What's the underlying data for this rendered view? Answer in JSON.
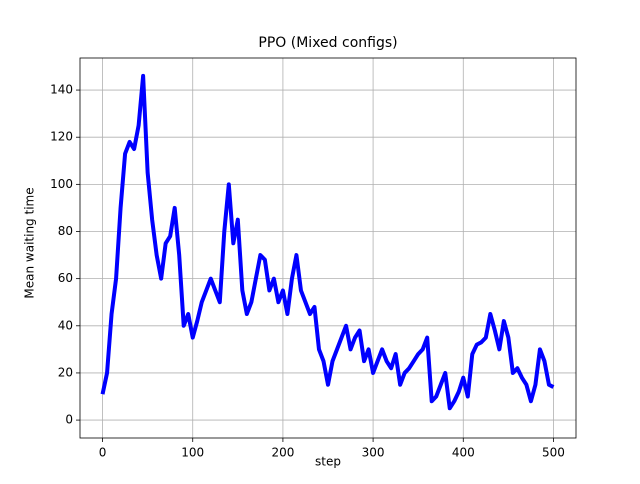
{
  "chart_data": {
    "type": "line",
    "title": "PPO (Mixed configs)",
    "xlabel": "step",
    "ylabel": "Mean waiting time",
    "x": [
      0,
      5,
      10,
      15,
      20,
      25,
      30,
      35,
      40,
      45,
      50,
      55,
      60,
      65,
      70,
      75,
      80,
      85,
      90,
      95,
      100,
      105,
      110,
      115,
      120,
      125,
      130,
      135,
      140,
      145,
      150,
      155,
      160,
      165,
      170,
      175,
      180,
      185,
      190,
      195,
      200,
      205,
      210,
      215,
      220,
      225,
      230,
      235,
      240,
      245,
      250,
      255,
      260,
      265,
      270,
      275,
      280,
      285,
      290,
      295,
      300,
      305,
      310,
      315,
      320,
      325,
      330,
      335,
      340,
      345,
      350,
      355,
      360,
      365,
      370,
      375,
      380,
      385,
      390,
      395,
      400,
      405,
      410,
      415,
      420,
      425,
      430,
      435,
      440,
      445,
      450,
      455,
      460,
      465,
      470,
      475,
      480,
      485,
      490,
      495,
      500
    ],
    "series": [
      {
        "name": "PPO",
        "color": "#0000ff",
        "values": [
          11,
          20,
          45,
          60,
          90,
          113,
          118,
          115,
          125,
          146,
          105,
          85,
          70,
          60,
          75,
          78,
          90,
          70,
          40,
          45,
          35,
          42,
          50,
          55,
          60,
          55,
          50,
          80,
          100,
          75,
          85,
          55,
          45,
          50,
          60,
          70,
          68,
          55,
          60,
          50,
          55,
          45,
          60,
          70,
          55,
          50,
          45,
          48,
          30,
          25,
          15,
          25,
          30,
          35,
          40,
          30,
          35,
          38,
          25,
          30,
          20,
          25,
          30,
          25,
          22,
          28,
          15,
          20,
          22,
          25,
          28,
          30,
          35,
          8,
          10,
          15,
          20,
          5,
          8,
          12,
          18,
          10,
          28,
          32,
          33,
          35,
          45,
          38,
          30,
          42,
          35,
          20,
          22,
          18,
          15,
          8,
          15,
          30,
          25,
          15,
          14
        ]
      }
    ],
    "xlim": [
      -25,
      525
    ],
    "ylim": [
      -7.6,
      153.6
    ],
    "xticks": [
      0,
      100,
      200,
      300,
      400,
      500
    ],
    "yticks": [
      0,
      20,
      40,
      60,
      80,
      100,
      120,
      140
    ],
    "grid": true
  }
}
